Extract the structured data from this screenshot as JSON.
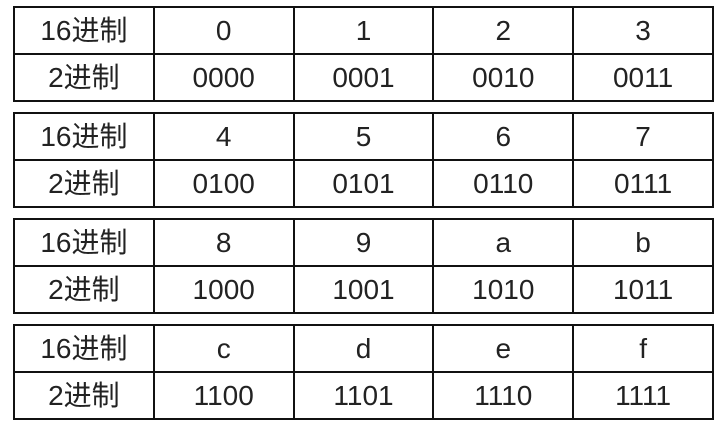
{
  "header_hex": "16进制",
  "header_bin": "2进制",
  "tables": [
    {
      "hex": [
        "0",
        "1",
        "2",
        "3"
      ],
      "bin": [
        "0000",
        "0001",
        "0010",
        "0011"
      ]
    },
    {
      "hex": [
        "4",
        "5",
        "6",
        "7"
      ],
      "bin": [
        "0100",
        "0101",
        "0110",
        "0111"
      ]
    },
    {
      "hex": [
        "8",
        "9",
        "a",
        "b"
      ],
      "bin": [
        "1000",
        "1001",
        "1010",
        "1011"
      ]
    },
    {
      "hex": [
        "c",
        "d",
        "e",
        "f"
      ],
      "bin": [
        "1100",
        "1101",
        "1110",
        "1111"
      ]
    }
  ]
}
